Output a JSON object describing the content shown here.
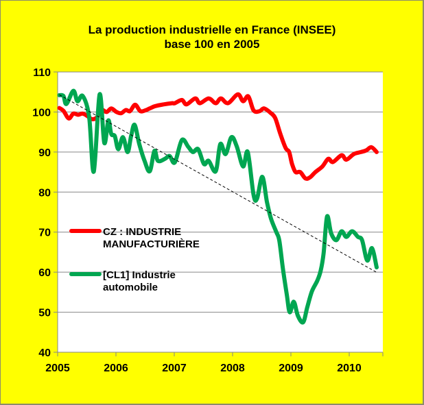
{
  "chart_data": {
    "type": "line",
    "title": "La production industrielle en France (INSEE)",
    "subtitle": "base 100 en 2005",
    "xlabel": "",
    "ylabel": "",
    "xlim": [
      2005,
      2010.58
    ],
    "ylim": [
      40,
      110
    ],
    "grid": true,
    "legend_position": "left-middle",
    "x_ticks": [
      "2005",
      "2006",
      "2007",
      "2008",
      "2009",
      "2010"
    ],
    "y_ticks": [
      "40",
      "50",
      "60",
      "70",
      "80",
      "90",
      "100",
      "110"
    ],
    "series": [
      {
        "name": "CZ : INDUSTRIE MANUFACTURIÈRE",
        "legend_lines": [
          "CZ : INDUSTRIE",
          "MANUFACTURIÈRE"
        ],
        "color": "#ff0000",
        "points": [
          [
            2005.03,
            101.0
          ],
          [
            2005.1,
            100.3
          ],
          [
            2005.19,
            98.4
          ],
          [
            2005.27,
            99.6
          ],
          [
            2005.35,
            99.3
          ],
          [
            2005.43,
            99.6
          ],
          [
            2005.51,
            99.0
          ],
          [
            2005.59,
            98.2
          ],
          [
            2005.67,
            98.6
          ],
          [
            2005.75,
            100.5
          ],
          [
            2005.84,
            100.0
          ],
          [
            2005.92,
            100.9
          ],
          [
            2006.01,
            100.0
          ],
          [
            2006.09,
            99.7
          ],
          [
            2006.17,
            100.5
          ],
          [
            2006.24,
            100.2
          ],
          [
            2006.33,
            101.8
          ],
          [
            2006.42,
            100.2
          ],
          [
            2006.52,
            100.5
          ],
          [
            2006.58,
            100.9
          ],
          [
            2006.68,
            101.5
          ],
          [
            2006.82,
            101.9
          ],
          [
            2006.96,
            102.2
          ],
          [
            2007.01,
            102.2
          ],
          [
            2007.13,
            103.0
          ],
          [
            2007.21,
            101.9
          ],
          [
            2007.36,
            103.4
          ],
          [
            2007.44,
            102.2
          ],
          [
            2007.59,
            103.4
          ],
          [
            2007.71,
            102.2
          ],
          [
            2007.8,
            103.4
          ],
          [
            2007.92,
            102.2
          ],
          [
            2008.09,
            104.4
          ],
          [
            2008.18,
            102.7
          ],
          [
            2008.27,
            103.9
          ],
          [
            2008.36,
            100.4
          ],
          [
            2008.46,
            100.2
          ],
          [
            2008.54,
            100.9
          ],
          [
            2008.65,
            99.8
          ],
          [
            2008.73,
            98.5
          ],
          [
            2008.82,
            94.5
          ],
          [
            2008.91,
            91.0
          ],
          [
            2008.97,
            90.0
          ],
          [
            2009.02,
            87.0
          ],
          [
            2009.08,
            85.0
          ],
          [
            2009.16,
            85.0
          ],
          [
            2009.25,
            83.4
          ],
          [
            2009.33,
            83.7
          ],
          [
            2009.42,
            85.0
          ],
          [
            2009.54,
            86.4
          ],
          [
            2009.64,
            88.3
          ],
          [
            2009.72,
            87.5
          ],
          [
            2009.87,
            89.2
          ],
          [
            2009.95,
            88.1
          ],
          [
            2010.08,
            89.5
          ],
          [
            2010.2,
            90.0
          ],
          [
            2010.29,
            90.4
          ],
          [
            2010.38,
            91.2
          ],
          [
            2010.47,
            90.0
          ]
        ]
      },
      {
        "name": "[CL1] Industrie automobile",
        "legend_lines": [
          "[CL1] Industrie",
          "automobile"
        ],
        "color": "#00a651",
        "points": [
          [
            2005.03,
            104.2
          ],
          [
            2005.1,
            104.0
          ],
          [
            2005.15,
            102.0
          ],
          [
            2005.27,
            105.3
          ],
          [
            2005.34,
            102.7
          ],
          [
            2005.43,
            104.0
          ],
          [
            2005.54,
            98.8
          ],
          [
            2005.62,
            85.1
          ],
          [
            2005.72,
            104.4
          ],
          [
            2005.8,
            92.3
          ],
          [
            2005.87,
            97.9
          ],
          [
            2005.92,
            94.5
          ],
          [
            2005.98,
            94.0
          ],
          [
            2006.04,
            90.7
          ],
          [
            2006.12,
            93.7
          ],
          [
            2006.2,
            90.0
          ],
          [
            2006.26,
            94.0
          ],
          [
            2006.32,
            96.8
          ],
          [
            2006.4,
            92.0
          ],
          [
            2006.49,
            87.8
          ],
          [
            2006.58,
            85.2
          ],
          [
            2006.66,
            90.3
          ],
          [
            2006.72,
            87.8
          ],
          [
            2006.84,
            88.3
          ],
          [
            2006.92,
            89.0
          ],
          [
            2007.01,
            87.4
          ],
          [
            2007.13,
            93.0
          ],
          [
            2007.24,
            91.3
          ],
          [
            2007.32,
            90.0
          ],
          [
            2007.41,
            90.7
          ],
          [
            2007.51,
            87.0
          ],
          [
            2007.59,
            87.8
          ],
          [
            2007.71,
            85.2
          ],
          [
            2007.79,
            92.0
          ],
          [
            2007.88,
            89.5
          ],
          [
            2007.98,
            93.7
          ],
          [
            2008.07,
            91.5
          ],
          [
            2008.18,
            86.4
          ],
          [
            2008.26,
            90.0
          ],
          [
            2008.36,
            79.3
          ],
          [
            2008.42,
            78.4
          ],
          [
            2008.51,
            83.8
          ],
          [
            2008.59,
            77.5
          ],
          [
            2008.66,
            73.3
          ],
          [
            2008.75,
            70.0
          ],
          [
            2008.8,
            68.0
          ],
          [
            2008.86,
            61.2
          ],
          [
            2008.93,
            54.3
          ],
          [
            2008.98,
            50.0
          ],
          [
            2009.05,
            52.6
          ],
          [
            2009.12,
            49.1
          ],
          [
            2009.21,
            47.5
          ],
          [
            2009.28,
            51.2
          ],
          [
            2009.36,
            55.2
          ],
          [
            2009.45,
            57.8
          ],
          [
            2009.51,
            60.3
          ],
          [
            2009.56,
            64.6
          ],
          [
            2009.62,
            73.9
          ],
          [
            2009.69,
            69.7
          ],
          [
            2009.78,
            68.0
          ],
          [
            2009.87,
            70.2
          ],
          [
            2009.95,
            68.8
          ],
          [
            2010.05,
            70.2
          ],
          [
            2010.15,
            68.8
          ],
          [
            2010.22,
            68.0
          ],
          [
            2010.31,
            62.9
          ],
          [
            2010.39,
            66.0
          ],
          [
            2010.47,
            61.2
          ]
        ]
      },
      {
        "name": "trend",
        "color": "#000000",
        "dashed": true,
        "points": [
          [
            2005.03,
            104.3
          ],
          [
            2010.49,
            59.8
          ]
        ]
      }
    ]
  }
}
